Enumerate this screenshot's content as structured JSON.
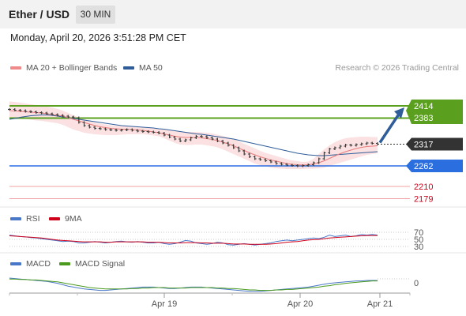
{
  "header": {
    "title": "Ether / USD",
    "timeframe": "30 MIN"
  },
  "datetime": "Monday, April 20, 2026 3:51:28 PM CET",
  "credit": "Research © 2026 Trading Central",
  "legends": {
    "main": [
      {
        "label": "MA 20 + Bollinger Bands",
        "color": "#f08a8a"
      },
      {
        "label": "MA 50",
        "color": "#2f5d9a"
      }
    ],
    "rsi": [
      {
        "label": "RSI",
        "color": "#4a78c9"
      },
      {
        "label": "9MA",
        "color": "#d0021b"
      }
    ],
    "macd": [
      {
        "label": "MACD",
        "color": "#4a78c9"
      },
      {
        "label": "MACD Signal",
        "color": "#4a9a1e"
      }
    ]
  },
  "colors": {
    "resistance": "#5aa01e",
    "support": "#2a6ee0",
    "target": "#e05a5a",
    "price": "#333333",
    "arrow": "#2f5d9a"
  },
  "chart_data": [
    {
      "type": "line",
      "name": "price",
      "ylim": [
        2158,
        2440
      ],
      "x_ticks": [
        "Apr 19",
        "Apr 20",
        "Apr 21"
      ],
      "price": [
        2405,
        2403,
        2402,
        2400,
        2399,
        2397,
        2396,
        2394,
        2392,
        2390,
        2388,
        2386,
        2384,
        2372,
        2364,
        2360,
        2357,
        2356,
        2354,
        2353,
        2352,
        2353,
        2354,
        2352,
        2350,
        2349,
        2348,
        2347,
        2345,
        2340,
        2335,
        2330,
        2325,
        2328,
        2333,
        2337,
        2336,
        2333,
        2330,
        2325,
        2320,
        2314,
        2308,
        2300,
        2292,
        2285,
        2280,
        2278,
        2275,
        2272,
        2268,
        2266,
        2264,
        2263,
        2262,
        2263,
        2265,
        2270,
        2280,
        2295,
        2305,
        2308,
        2312,
        2315,
        2314,
        2316,
        2318,
        2320,
        2319,
        2317
      ],
      "ma20": [
        2402,
        2401,
        2400,
        2399,
        2398,
        2397,
        2396,
        2394,
        2392,
        2390,
        2388,
        2384,
        2380,
        2376,
        2372,
        2368,
        2364,
        2361,
        2359,
        2357,
        2356,
        2355,
        2355,
        2354,
        2353,
        2352,
        2350,
        2348,
        2346,
        2343,
        2340,
        2337,
        2335,
        2334,
        2334,
        2334,
        2333,
        2331,
        2329,
        2326,
        2322,
        2318,
        2313,
        2307,
        2301,
        2295,
        2290,
        2285,
        2281,
        2277,
        2274,
        2271,
        2268,
        2266,
        2265,
        2264,
        2265,
        2267,
        2270,
        2275,
        2281,
        2287,
        2293,
        2298,
        2302,
        2306,
        2309,
        2311,
        2312,
        2313
      ],
      "bb_upper": [
        2425,
        2424,
        2422,
        2420,
        2418,
        2416,
        2414,
        2412,
        2410,
        2406,
        2402,
        2396,
        2390,
        2385,
        2380,
        2376,
        2372,
        2369,
        2367,
        2365,
        2364,
        2363,
        2363,
        2362,
        2361,
        2360,
        2359,
        2357,
        2355,
        2354,
        2352,
        2350,
        2349,
        2348,
        2348,
        2348,
        2347,
        2346,
        2344,
        2341,
        2338,
        2334,
        2330,
        2324,
        2318,
        2312,
        2306,
        2300,
        2295,
        2291,
        2287,
        2283,
        2279,
        2276,
        2274,
        2272,
        2273,
        2280,
        2292,
        2304,
        2314,
        2322,
        2328,
        2332,
        2334,
        2335,
        2336,
        2336,
        2335,
        2335
      ],
      "bb_lower": [
        2384,
        2383,
        2382,
        2381,
        2379,
        2377,
        2376,
        2374,
        2372,
        2370,
        2366,
        2360,
        2354,
        2350,
        2346,
        2344,
        2342,
        2341,
        2340,
        2340,
        2340,
        2341,
        2342,
        2342,
        2342,
        2342,
        2341,
        2339,
        2337,
        2332,
        2326,
        2320,
        2316,
        2315,
        2315,
        2316,
        2316,
        2314,
        2312,
        2309,
        2304,
        2298,
        2292,
        2286,
        2280,
        2274,
        2268,
        2264,
        2261,
        2258,
        2256,
        2255,
        2254,
        2254,
        2254,
        2254,
        2255,
        2255,
        2256,
        2258,
        2262,
        2266,
        2270,
        2274,
        2278,
        2282,
        2286,
        2290,
        2292,
        2294
      ],
      "ma50": [
        2380,
        2382,
        2385,
        2387,
        2389,
        2390,
        2391,
        2391,
        2390,
        2388,
        2386,
        2384,
        2382,
        2380,
        2378,
        2376,
        2374,
        2372,
        2370,
        2368,
        2366,
        2364,
        2363,
        2362,
        2361,
        2360,
        2359,
        2358,
        2356,
        2355,
        2353,
        2351,
        2349,
        2347,
        2345,
        2343,
        2342,
        2340,
        2338,
        2336,
        2334,
        2332,
        2330,
        2327,
        2324,
        2321,
        2318,
        2315,
        2312,
        2309,
        2306,
        2303,
        2300,
        2297,
        2294,
        2292,
        2290,
        2289,
        2288,
        2288,
        2289,
        2290,
        2291,
        2292,
        2293,
        2294,
        2295,
        2296,
        2297,
        2298
      ],
      "levels": {
        "resistance": [
          "2414",
          "2383"
        ],
        "current": "2317",
        "support": [
          "2262"
        ],
        "targets": [
          "2210",
          "2179"
        ]
      }
    },
    {
      "type": "line",
      "name": "rsi",
      "ylim": [
        20,
        80
      ],
      "y_ticks": [
        "70",
        "50",
        "30"
      ],
      "rsi": [
        62,
        60,
        58,
        57,
        55,
        54,
        52,
        50,
        48,
        46,
        44,
        45,
        44,
        40,
        40,
        42,
        44,
        42,
        40,
        42,
        44,
        45,
        43,
        42,
        44,
        42,
        40,
        40,
        42,
        38,
        36,
        38,
        42,
        47,
        45,
        40,
        38,
        36,
        38,
        42,
        40,
        35,
        34,
        36,
        38,
        36,
        34,
        36,
        38,
        40,
        44,
        46,
        48,
        46,
        48,
        50,
        52,
        54,
        52,
        56,
        62,
        58,
        60,
        62,
        58,
        60,
        64,
        62,
        64,
        62
      ],
      "ma9": [
        60,
        59,
        58,
        57,
        56,
        55,
        54,
        52,
        50,
        48,
        47,
        46,
        45,
        44,
        43,
        43,
        43,
        43,
        42,
        42,
        43,
        43,
        43,
        43,
        43,
        43,
        42,
        42,
        42,
        41,
        40,
        40,
        40,
        41,
        41,
        41,
        40,
        40,
        39,
        39,
        39,
        38,
        37,
        37,
        37,
        36,
        36,
        36,
        36,
        37,
        38,
        40,
        42,
        43,
        44,
        46,
        48,
        49,
        50,
        52,
        54,
        55,
        56,
        57,
        58,
        59,
        60,
        61,
        61,
        61
      ]
    },
    {
      "type": "line",
      "name": "macd",
      "ylim": [
        -30,
        14
      ],
      "y_ticks": [
        "0"
      ],
      "macd": [
        10,
        9,
        8,
        7,
        6,
        5,
        4,
        3,
        1,
        -1,
        -4,
        -7,
        -9,
        -11,
        -13,
        -14,
        -15,
        -16,
        -16,
        -15,
        -14,
        -13,
        -12,
        -11,
        -10,
        -9,
        -9,
        -9,
        -10,
        -11,
        -12,
        -12,
        -11,
        -10,
        -9,
        -9,
        -9,
        -10,
        -11,
        -12,
        -13,
        -14,
        -15,
        -16,
        -17,
        -18,
        -18,
        -18,
        -17,
        -16,
        -15,
        -14,
        -13,
        -12,
        -11,
        -10,
        -9,
        -7,
        -5,
        -3,
        -1,
        0,
        1,
        2,
        3,
        4,
        4,
        5,
        5,
        5
      ],
      "signal": [
        8,
        8,
        7,
        7,
        6,
        6,
        5,
        4,
        3,
        2,
        0,
        -2,
        -4,
        -6,
        -8,
        -10,
        -11,
        -12,
        -13,
        -13,
        -13,
        -13,
        -13,
        -12,
        -12,
        -11,
        -11,
        -10,
        -10,
        -10,
        -11,
        -11,
        -11,
        -11,
        -10,
        -10,
        -10,
        -10,
        -10,
        -11,
        -11,
        -12,
        -12,
        -13,
        -14,
        -15,
        -15,
        -16,
        -16,
        -16,
        -15,
        -15,
        -14,
        -14,
        -13,
        -12,
        -11,
        -10,
        -9,
        -7,
        -6,
        -4,
        -3,
        -1,
        0,
        1,
        2,
        3,
        4,
        4
      ]
    }
  ]
}
